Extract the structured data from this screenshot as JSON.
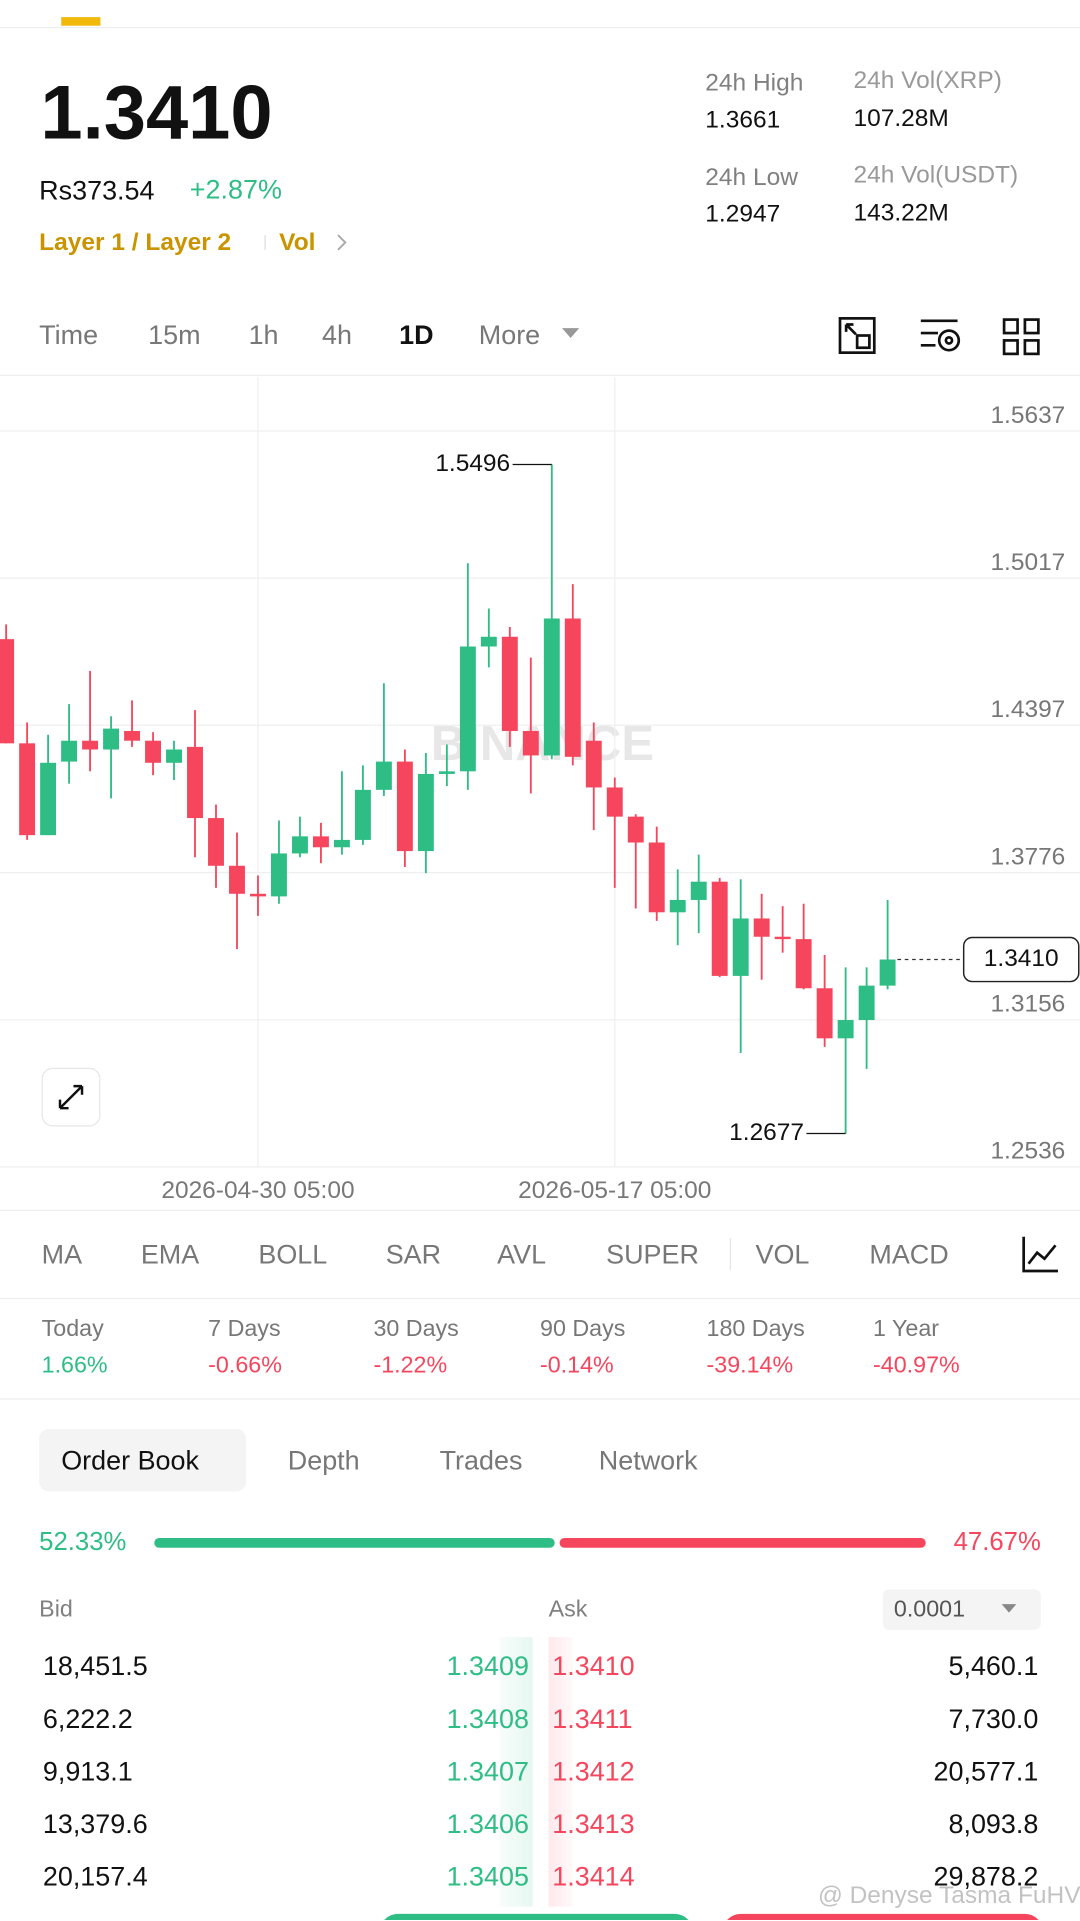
{
  "header": {
    "price": "1.3410",
    "fiat": "Rs373.54",
    "change": "+2.87%",
    "tags": [
      "Layer 1 / Layer 2",
      "Vol"
    ],
    "stats": [
      {
        "label": "24h High",
        "value": "1.3661"
      },
      {
        "label": "24h Low",
        "value": "1.2947"
      },
      {
        "label": "24h Vol(XRP)",
        "value": "107.28M"
      },
      {
        "label": "24h Vol(USDT)",
        "value": "143.22M"
      }
    ]
  },
  "intervals": [
    "Time",
    "15m",
    "1h",
    "4h",
    "1D",
    "More"
  ],
  "chart_data": {
    "type": "candlestick",
    "watermark": "BINANCE",
    "categories": [
      null,
      null,
      null,
      null,
      null,
      null,
      null,
      null,
      null,
      null,
      null,
      null,
      "2026-04-30 05:00",
      null,
      null,
      null,
      null,
      null,
      null,
      null,
      null,
      null,
      null,
      null,
      null,
      null,
      null,
      null,
      null,
      "2026-05-17 05:00",
      null,
      null,
      null,
      null,
      null,
      null,
      null,
      null,
      null,
      null,
      null,
      null,
      null
    ],
    "open": [
      1.476,
      1.4321,
      1.3934,
      1.4244,
      1.4332,
      1.4295,
      1.4373,
      1.4332,
      1.4239,
      1.4306,
      1.4006,
      1.3805,
      1.3687,
      1.3676,
      1.3857,
      1.3929,
      1.3883,
      1.3914,
      1.4125,
      1.4244,
      1.3867,
      1.4192,
      1.4203,
      1.4729,
      1.477,
      1.4373,
      1.427,
      1.4847,
      1.4332,
      1.4135,
      1.4012,
      1.3903,
      1.3609,
      1.3661,
      1.3738,
      1.3341,
      1.3583,
      1.3506,
      1.3496,
      1.3289,
      1.3078,
      1.3155,
      1.33
    ],
    "high": [
      1.4822,
      1.4409,
      1.4357,
      1.4486,
      1.4626,
      1.4435,
      1.4502,
      1.4368,
      1.4332,
      1.4461,
      1.4063,
      1.3945,
      1.3764,
      1.3996,
      1.4012,
      1.3986,
      1.4203,
      1.4228,
      1.4574,
      1.4295,
      1.428,
      1.4316,
      1.508,
      1.4889,
      1.4811,
      1.4682,
      1.5496,
      1.4992,
      1.4409,
      1.4177,
      1.4022,
      1.397,
      1.379,
      1.3852,
      1.3754,
      1.3748,
      1.3687,
      1.3635,
      1.3645,
      1.3429,
      1.3377,
      1.3377,
      1.3661
    ],
    "low": [
      1.4321,
      1.3914,
      1.3934,
      1.4151,
      1.4203,
      1.4089,
      1.4306,
      1.4187,
      1.4166,
      1.3841,
      1.3712,
      1.3454,
      1.3594,
      1.3645,
      1.3841,
      1.3816,
      1.3852,
      1.3893,
      1.4099,
      1.38,
      1.3774,
      1.4141,
      1.4125,
      1.4641,
      1.4306,
      1.411,
      1.4254,
      1.4228,
      1.3955,
      1.3712,
      1.3625,
      1.3573,
      1.347,
      1.3521,
      1.3336,
      1.3016,
      1.3325,
      1.3439,
      1.3284,
      1.3042,
      1.2677,
      1.2949,
      1.3284
    ],
    "close": [
      1.4321,
      1.3934,
      1.4239,
      1.4332,
      1.4295,
      1.4383,
      1.4332,
      1.4239,
      1.4295,
      1.4006,
      1.3805,
      1.3687,
      1.3676,
      1.3857,
      1.3929,
      1.3883,
      1.3914,
      1.4125,
      1.4244,
      1.3867,
      1.4192,
      1.4203,
      1.4729,
      1.477,
      1.4373,
      1.427,
      1.4847,
      1.4264,
      1.4135,
      1.4012,
      1.3903,
      1.3609,
      1.3661,
      1.3738,
      1.3341,
      1.3583,
      1.3506,
      1.3496,
      1.3289,
      1.3078,
      1.3155,
      1.33,
      1.341
    ],
    "up_color": "#2ebd85",
    "down_color": "#f6465d",
    "ylim": [
      1.2536,
      1.5864
    ],
    "yticks": [
      1.5637,
      1.5017,
      1.4397,
      1.3776,
      1.3156,
      1.2536
    ],
    "grid": true,
    "annotations": [
      {
        "value": 1.5496,
        "label": "1.5496"
      },
      {
        "value": 1.2677,
        "label": "1.2677"
      },
      {
        "value": 1.341,
        "label": "1.3410"
      }
    ]
  },
  "indicators": [
    "MA",
    "EMA",
    "BOLL",
    "SAR",
    "AVL",
    "SUPER",
    "VOL",
    "MACD"
  ],
  "performance": [
    {
      "period": "Today",
      "change": "1.66%"
    },
    {
      "period": "7 Days",
      "change": "-0.66%"
    },
    {
      "period": "30 Days",
      "change": "-1.22%"
    },
    {
      "period": "90 Days",
      "change": "-0.14%"
    },
    {
      "period": "180 Days",
      "change": "-39.14%"
    },
    {
      "period": "1 Year",
      "change": "-40.97%"
    }
  ],
  "order_book": {
    "tabs": [
      "Order Book",
      "Depth",
      "Trades",
      "Network"
    ],
    "bid_ratio": "52.33%",
    "ask_ratio": "47.67%",
    "bid_label": "Bid",
    "ask_label": "Ask",
    "precision": "0.0001",
    "rows": [
      [
        "18,451.5",
        "1.3409",
        "1.3410",
        "5,460.1"
      ],
      [
        "6,222.2",
        "1.3408",
        "1.3411",
        "7,730.0"
      ],
      [
        "9,913.1",
        "1.3407",
        "1.3412",
        "20,577.1"
      ],
      [
        "13,379.6",
        "1.3406",
        "1.3413",
        "8,093.8"
      ],
      [
        "20,157.4",
        "1.3405",
        "1.3414",
        "29,878.2"
      ]
    ]
  },
  "watermark": "@ Denyse Tasma FuHV"
}
